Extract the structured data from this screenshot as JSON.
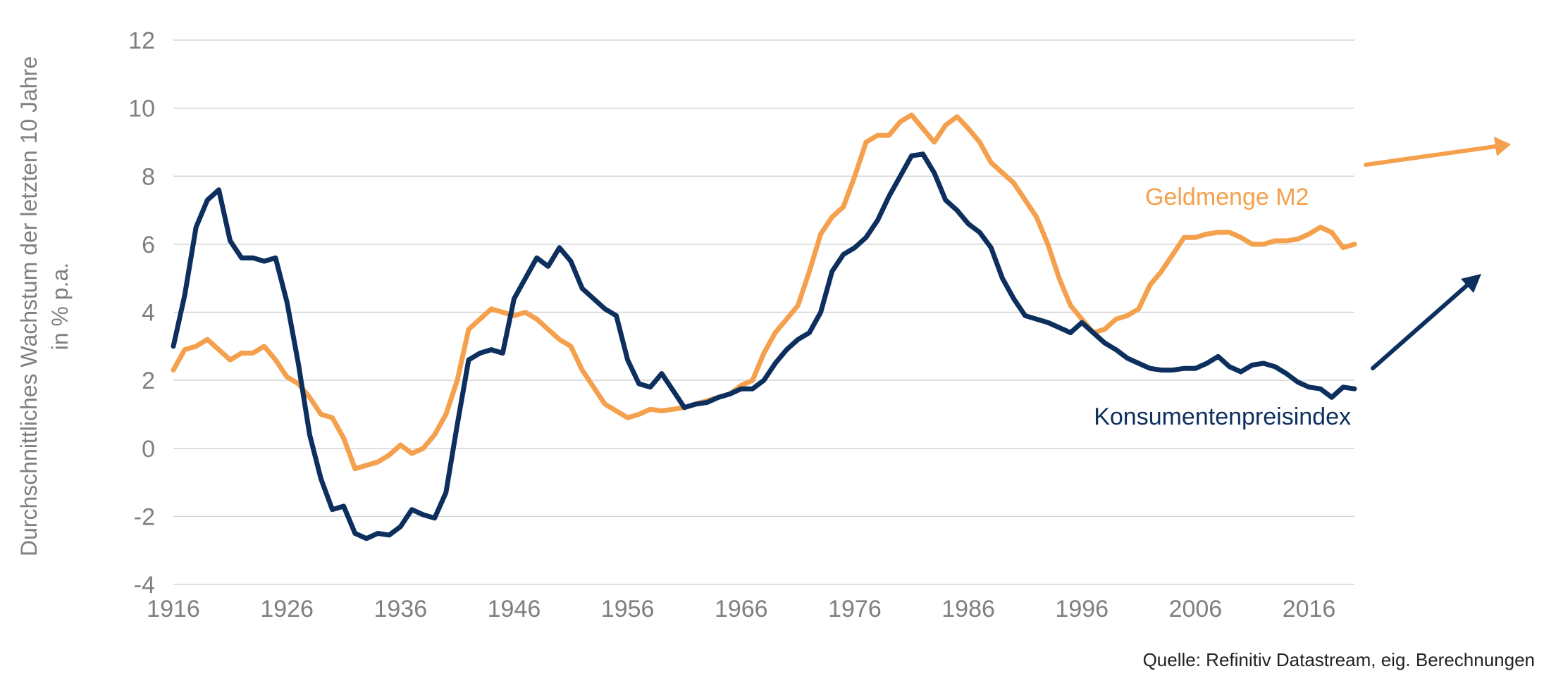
{
  "chart_data": {
    "type": "line",
    "ylabel_line1": "Durchschnittliches Wachstum der letzten 10 Jahre",
    "ylabel_line2": "in % p.a.",
    "source": "Quelle: Refinitiv Datastream, eig. Berechnungen",
    "xlim": [
      1916,
      2020
    ],
    "ylim": [
      -4,
      12
    ],
    "xticks": [
      1916,
      1926,
      1936,
      1946,
      1956,
      1966,
      1976,
      1986,
      1996,
      2006,
      2016
    ],
    "yticks": [
      -4,
      -2,
      0,
      2,
      4,
      6,
      8,
      10,
      12
    ],
    "colors": {
      "m2": "#f4a04c",
      "cpi": "#0d2f5e",
      "grid": "#d6d6d6",
      "tick": "#7f7f7f"
    },
    "series": [
      {
        "name": "Geldmenge M2",
        "color": "#f4a04c",
        "x": [
          1916,
          1917,
          1918,
          1919,
          1920,
          1921,
          1922,
          1923,
          1924,
          1925,
          1926,
          1927,
          1928,
          1929,
          1930,
          1931,
          1932,
          1933,
          1934,
          1935,
          1936,
          1937,
          1938,
          1939,
          1940,
          1941,
          1942,
          1943,
          1944,
          1945,
          1946,
          1947,
          1948,
          1949,
          1950,
          1951,
          1952,
          1953,
          1954,
          1955,
          1956,
          1957,
          1958,
          1959,
          1960,
          1961,
          1962,
          1963,
          1964,
          1965,
          1966,
          1967,
          1968,
          1969,
          1970,
          1971,
          1972,
          1973,
          1974,
          1975,
          1976,
          1977,
          1978,
          1979,
          1980,
          1981,
          1982,
          1983,
          1984,
          1985,
          1986,
          1987,
          1988,
          1989,
          1990,
          1991,
          1992,
          1993,
          1994,
          1995,
          1996,
          1997,
          1998,
          1999,
          2000,
          2001,
          2002,
          2003,
          2004,
          2005,
          2006,
          2007,
          2008,
          2009,
          2010,
          2011,
          2012,
          2013,
          2014,
          2015,
          2016,
          2017,
          2018,
          2019,
          2020
        ],
        "values": [
          2.3,
          2.9,
          3.0,
          3.2,
          2.9,
          2.6,
          2.8,
          2.8,
          3.0,
          2.6,
          2.1,
          1.9,
          1.5,
          1.0,
          0.9,
          0.3,
          -0.6,
          -0.5,
          -0.4,
          -0.2,
          0.1,
          -0.15,
          0.0,
          0.4,
          1.0,
          2.0,
          3.5,
          3.8,
          4.1,
          4.0,
          3.9,
          4.0,
          3.8,
          3.5,
          3.2,
          3.0,
          2.3,
          1.8,
          1.3,
          1.1,
          0.9,
          1.0,
          1.15,
          1.1,
          1.15,
          1.2,
          1.3,
          1.4,
          1.5,
          1.6,
          1.85,
          2.0,
          2.8,
          3.4,
          3.8,
          4.2,
          5.2,
          6.3,
          6.8,
          7.1,
          8.0,
          9.0,
          9.2,
          9.2,
          9.6,
          9.8,
          9.4,
          9.0,
          9.5,
          9.75,
          9.4,
          9.0,
          8.4,
          8.1,
          7.8,
          7.3,
          6.8,
          6.0,
          5.0,
          4.2,
          3.8,
          3.4,
          3.5,
          3.8,
          3.9,
          4.1,
          4.8,
          5.2,
          5.7,
          6.2,
          6.2,
          6.3,
          6.35,
          6.35,
          6.2,
          6.0,
          6.0,
          6.1,
          6.1,
          6.15,
          6.3,
          6.5,
          6.35,
          5.9,
          6.0
        ]
      },
      {
        "name": "Konsumentenpreisindex",
        "color": "#0d2f5e",
        "x": [
          1916,
          1917,
          1918,
          1919,
          1920,
          1921,
          1922,
          1923,
          1924,
          1925,
          1926,
          1927,
          1928,
          1929,
          1930,
          1931,
          1932,
          1933,
          1934,
          1935,
          1936,
          1937,
          1938,
          1939,
          1940,
          1941,
          1942,
          1943,
          1944,
          1945,
          1946,
          1947,
          1948,
          1949,
          1950,
          1951,
          1952,
          1953,
          1954,
          1955,
          1956,
          1957,
          1958,
          1959,
          1960,
          1961,
          1962,
          1963,
          1964,
          1965,
          1966,
          1967,
          1968,
          1969,
          1970,
          1971,
          1972,
          1973,
          1974,
          1975,
          1976,
          1977,
          1978,
          1979,
          1980,
          1981,
          1982,
          1983,
          1984,
          1985,
          1986,
          1987,
          1988,
          1989,
          1990,
          1991,
          1992,
          1993,
          1994,
          1995,
          1996,
          1997,
          1998,
          1999,
          2000,
          2001,
          2002,
          2003,
          2004,
          2005,
          2006,
          2007,
          2008,
          2009,
          2010,
          2011,
          2012,
          2013,
          2014,
          2015,
          2016,
          2017,
          2018,
          2019,
          2020
        ],
        "values": [
          3.0,
          4.5,
          6.5,
          7.3,
          7.6,
          6.1,
          5.6,
          5.6,
          5.5,
          5.6,
          4.3,
          2.5,
          0.4,
          -0.9,
          -1.8,
          -1.7,
          -2.5,
          -2.65,
          -2.5,
          -2.55,
          -2.3,
          -1.8,
          -1.95,
          -2.05,
          -1.3,
          0.7,
          2.6,
          2.8,
          2.9,
          2.8,
          4.4,
          5.0,
          5.6,
          5.35,
          5.9,
          5.5,
          4.7,
          4.4,
          4.1,
          3.9,
          2.6,
          1.9,
          1.8,
          2.2,
          1.7,
          1.2,
          1.3,
          1.35,
          1.5,
          1.6,
          1.75,
          1.75,
          2.0,
          2.5,
          2.9,
          3.2,
          3.4,
          4.0,
          5.2,
          5.7,
          5.9,
          6.2,
          6.7,
          7.4,
          8.0,
          8.6,
          8.65,
          8.1,
          7.3,
          7.0,
          6.6,
          6.35,
          5.9,
          5.0,
          4.4,
          3.9,
          3.8,
          3.7,
          3.55,
          3.4,
          3.7,
          3.4,
          3.1,
          2.9,
          2.65,
          2.5,
          2.35,
          2.3,
          2.3,
          2.35,
          2.35,
          2.5,
          2.7,
          2.4,
          2.25,
          2.45,
          2.5,
          2.4,
          2.2,
          1.95,
          1.8,
          1.75,
          1.5,
          1.8,
          1.75
        ]
      }
    ]
  }
}
